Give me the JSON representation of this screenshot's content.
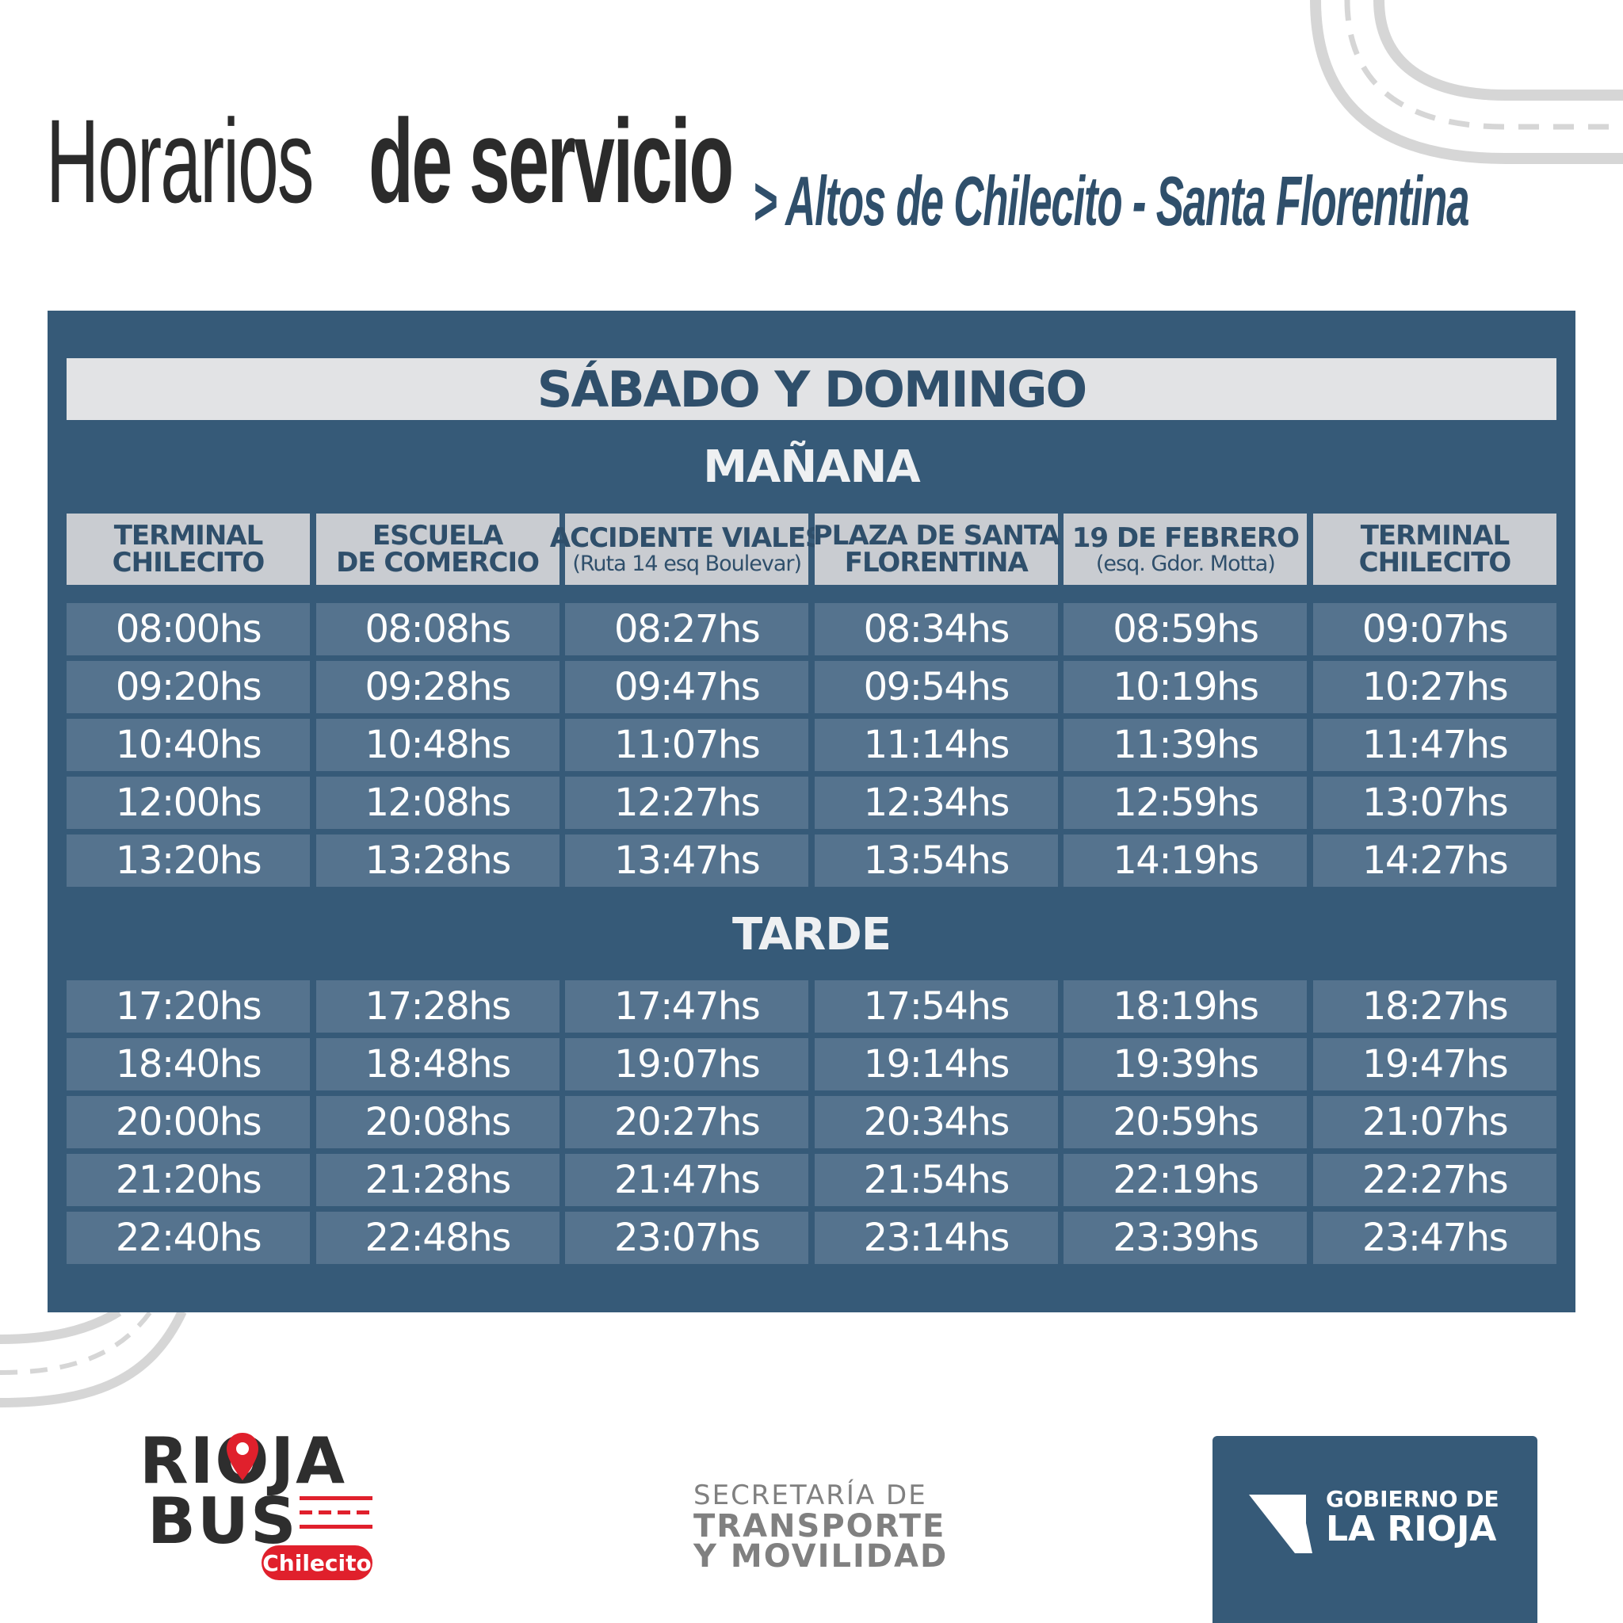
{
  "header": {
    "title_light": "Horarios",
    "title_bold": "de servicio",
    "route": "> Altos de Chilecito - Santa Florentina"
  },
  "schedule": {
    "day_label": "SÁBADO Y DOMINGO",
    "morning_label": "MAÑANA",
    "afternoon_label": "TARDE",
    "columns": [
      {
        "label": "TERMINAL",
        "label2": "CHILECITO",
        "sub": ""
      },
      {
        "label": "ESCUELA",
        "label2": "DE COMERCIO",
        "sub": ""
      },
      {
        "label": "ACCIDENTE VIALES",
        "label2": "",
        "sub": "(Ruta 14 esq Boulevar)"
      },
      {
        "label": "PLAZA DE SANTA",
        "label2": "FLORENTINA",
        "sub": ""
      },
      {
        "label": "19 DE FEBRERO",
        "label2": "",
        "sub": "(esq. Gdor. Motta)"
      },
      {
        "label": "TERMINAL",
        "label2": "CHILECITO",
        "sub": ""
      }
    ],
    "morning": [
      [
        "08:00hs",
        "08:08hs",
        "08:27hs",
        "08:34hs",
        "08:59hs",
        "09:07hs"
      ],
      [
        "09:20hs",
        "09:28hs",
        "09:47hs",
        "09:54hs",
        "10:19hs",
        "10:27hs"
      ],
      [
        "10:40hs",
        "10:48hs",
        "11:07hs",
        "11:14hs",
        "11:39hs",
        "11:47hs"
      ],
      [
        "12:00hs",
        "12:08hs",
        "12:27hs",
        "12:34hs",
        "12:59hs",
        "13:07hs"
      ],
      [
        "13:20hs",
        "13:28hs",
        "13:47hs",
        "13:54hs",
        "14:19hs",
        "14:27hs"
      ]
    ],
    "afternoon": [
      [
        "17:20hs",
        "17:28hs",
        "17:47hs",
        "17:54hs",
        "18:19hs",
        "18:27hs"
      ],
      [
        "18:40hs",
        "18:48hs",
        "19:07hs",
        "19:14hs",
        "19:39hs",
        "19:47hs"
      ],
      [
        "20:00hs",
        "20:08hs",
        "20:27hs",
        "20:34hs",
        "20:59hs",
        "21:07hs"
      ],
      [
        "21:20hs",
        "21:28hs",
        "21:47hs",
        "21:54hs",
        "22:19hs",
        "22:27hs"
      ],
      [
        "22:40hs",
        "22:48hs",
        "23:07hs",
        "23:14hs",
        "23:39hs",
        "23:47hs"
      ]
    ]
  },
  "footer": {
    "logo_line1": "RIOJA",
    "logo_line2": "BUS",
    "logo_city": "Chilecito",
    "secretaria_line1": "SECRETARÍA DE",
    "secretaria_line2": "TRANSPORTE",
    "secretaria_line3": "Y MOVILIDAD",
    "gobierno_line1": "GOBIERNO DE",
    "gobierno_line2": "LA RIOJA"
  },
  "colors": {
    "panel": "#365a78",
    "cell": "#55738e",
    "header_cell": "#c9ccd1",
    "accent_red": "#e0202c"
  }
}
